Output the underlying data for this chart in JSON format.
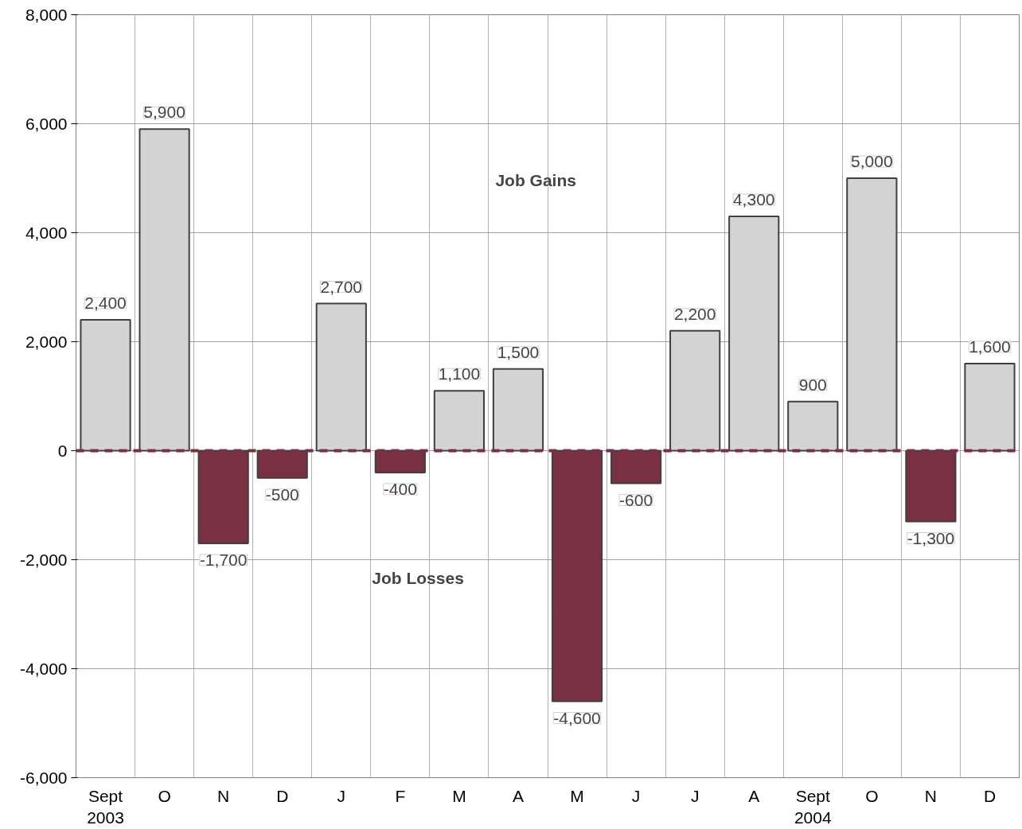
{
  "chart_data": {
    "type": "bar",
    "categories": [
      "Sept\n2003",
      "O",
      "N",
      "D",
      "J",
      "F",
      "M",
      "A",
      "M",
      "J",
      "J",
      "A",
      "Sept\n2004",
      "O",
      "N",
      "D"
    ],
    "values": [
      2400,
      5900,
      -1700,
      -500,
      2700,
      -400,
      1100,
      1500,
      -4600,
      -600,
      2200,
      4300,
      900,
      5000,
      -1300,
      1600
    ],
    "colors": [
      "#d3d3d3",
      "#d3d3d3",
      "#7a3043",
      "#7a3043",
      "#d3d3d3",
      "#7a3043",
      "#d3d3d3",
      "#d3d3d3",
      "#7a3043",
      "#7a3043",
      "#d3d3d3",
      "#d3d3d3",
      "#d3d3d3",
      "#d3d3d3",
      "#7a3043",
      "#d3d3d3"
    ],
    "ylim": [
      -6000,
      8000
    ],
    "yticks": [
      {
        "value": -6000,
        "label": "-6,000"
      },
      {
        "value": -4000,
        "label": "-4,000"
      },
      {
        "value": -2000,
        "label": "-2,000"
      },
      0,
      {
        "value": 2000,
        "label": "2,000"
      },
      {
        "value": 4000,
        "label": "4,000"
      },
      {
        "value": 6000,
        "label": "6,000"
      },
      {
        "value": 8000,
        "label": "8,000"
      }
    ],
    "annotations": [
      "Job Gains",
      "Job Losses"
    ],
    "ref_lines": [
      {
        "axis": "y",
        "value": 0,
        "color": "#7a3043",
        "line_style": "dashed"
      }
    ],
    "value_labels": [
      "2,400",
      "5,900",
      "-1,700",
      "-500",
      "2,700",
      "-400",
      "1,100",
      "1,500",
      "-4,600",
      "-600",
      "2,200",
      "4,300",
      "900",
      "5,000",
      "-1,300",
      "1,600"
    ],
    "grid": true
  }
}
